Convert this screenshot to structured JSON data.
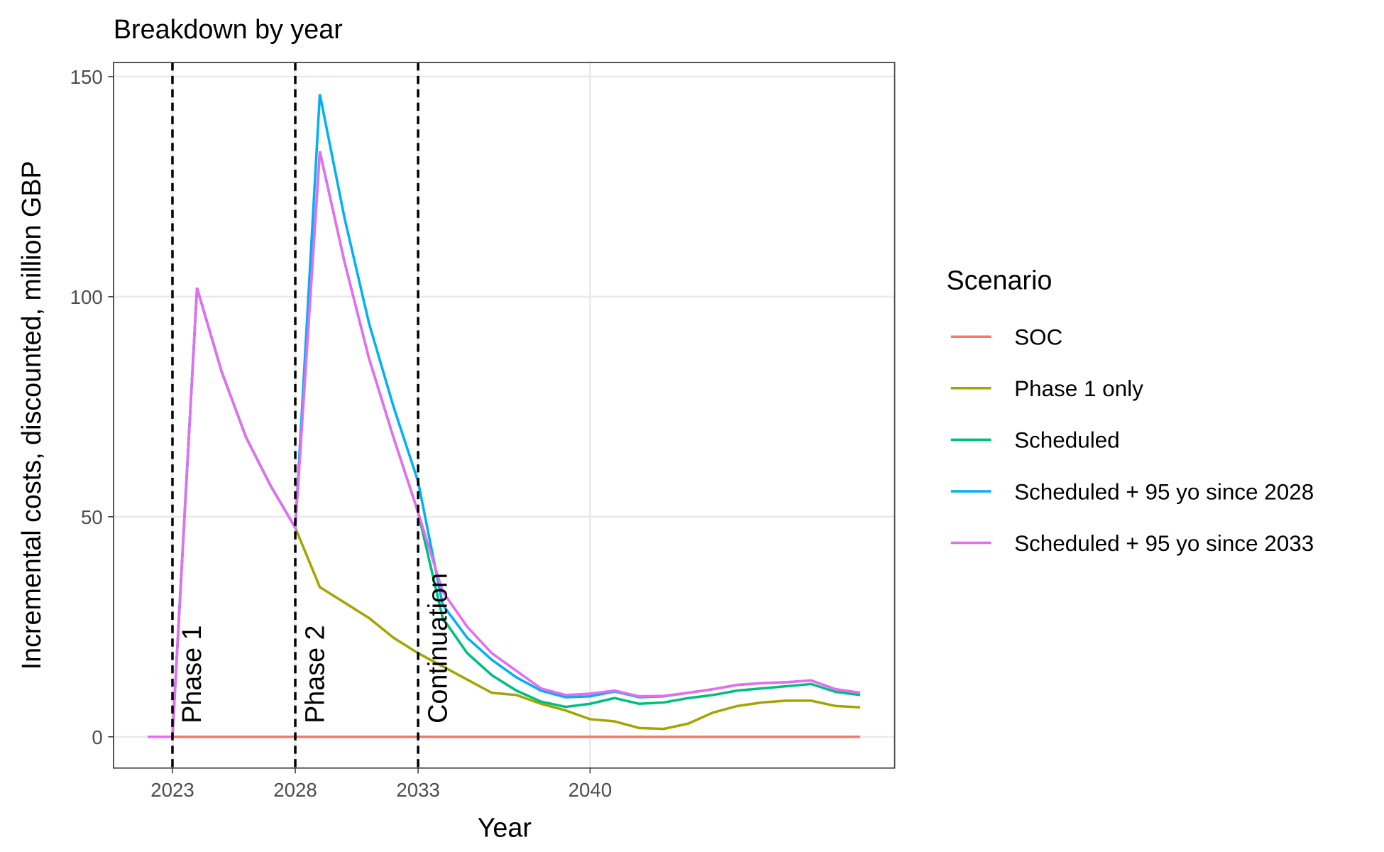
{
  "chart_data": {
    "type": "line",
    "title": "Breakdown by year",
    "x_label": "Year",
    "y_label": "Incremental costs, discounted, million GBP",
    "legend_title": "Scenario",
    "legend_position": "right",
    "grid": true,
    "x": [
      2022,
      2023,
      2024,
      2025,
      2026,
      2027,
      2028,
      2029,
      2030,
      2031,
      2032,
      2033,
      2034,
      2035,
      2036,
      2037,
      2038,
      2039,
      2040,
      2041,
      2042,
      2043,
      2044,
      2045,
      2046,
      2047,
      2048,
      2049,
      2050,
      2051
    ],
    "xlim": [
      2020.6,
      2052.4
    ],
    "xticks": [
      2023,
      2028,
      2033,
      2040
    ],
    "ylim": [
      -7.1,
      153.2
    ],
    "yticks": [
      0,
      50,
      100,
      150
    ],
    "vlines": [
      {
        "x": 2023,
        "label": "Phase 1"
      },
      {
        "x": 2028,
        "label": "Phase 2"
      },
      {
        "x": 2033,
        "label": "Continuation"
      }
    ],
    "series": [
      {
        "name": "SOC",
        "color": "#F8766D",
        "values": [
          0,
          0,
          0,
          0,
          0,
          0,
          0,
          0,
          0,
          0,
          0,
          0,
          0,
          0,
          0,
          0,
          0,
          0,
          0,
          0,
          0,
          0,
          0,
          0,
          0,
          0,
          0,
          0,
          0,
          0
        ]
      },
      {
        "name": "Phase 1 only",
        "color": "#A3A500",
        "values": [
          0,
          0,
          102,
          83,
          68,
          57,
          47.5,
          34,
          30.5,
          27,
          22.5,
          19,
          16,
          13,
          10,
          9.5,
          7.5,
          6,
          4,
          3.5,
          2,
          1.8,
          3,
          5.5,
          7,
          7.8,
          8.2,
          8.2,
          7,
          6.7
        ]
      },
      {
        "name": "Scheduled",
        "color": "#00BF7D",
        "values": [
          0,
          0,
          102,
          83,
          68,
          57,
          47.5,
          133,
          108,
          86,
          68,
          51,
          27,
          19,
          14,
          10.5,
          8,
          6.8,
          7.5,
          8.8,
          7.5,
          7.8,
          8.8,
          9.5,
          10.5,
          11,
          11.5,
          12,
          10.2,
          9.5
        ]
      },
      {
        "name": "Scheduled + 95 yo since 2028",
        "color": "#00B0F6",
        "values": [
          0,
          0,
          102,
          83,
          68,
          57,
          47.5,
          146,
          118,
          94,
          75,
          58,
          30,
          22.5,
          17.5,
          13.5,
          10.5,
          9,
          9.2,
          10.3,
          9,
          9.2,
          10,
          10.8,
          11.8,
          12.2,
          12.4,
          12.8,
          10.8,
          10
        ]
      },
      {
        "name": "Scheduled + 95 yo since 2033",
        "color": "#E76BF3",
        "values": [
          0,
          0,
          102,
          83,
          68,
          57,
          47.5,
          133,
          108,
          86,
          68,
          51,
          33,
          25,
          19,
          15,
          11,
          9.5,
          9.8,
          10.5,
          9.2,
          9.3,
          10,
          10.8,
          11.8,
          12.2,
          12.4,
          12.8,
          10.8,
          10
        ]
      }
    ]
  }
}
